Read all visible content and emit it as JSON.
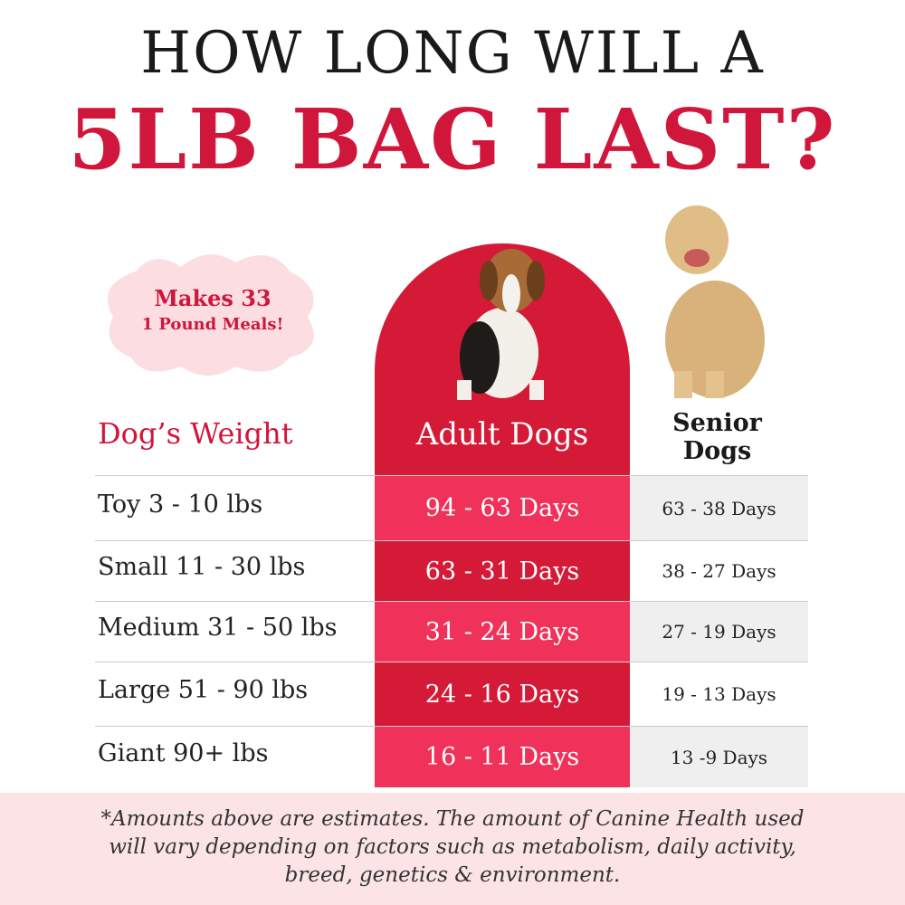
{
  "header": {
    "line1": "HOW LONG WILL A",
    "line2": "5LB BAG LAST?"
  },
  "badge": {
    "line1": "Makes 33",
    "line2": "1 Pound Meals!"
  },
  "table": {
    "headers": [
      "Dog’s Weight",
      "Adult Dogs",
      "Senior Dogs"
    ],
    "rows": [
      [
        "Toy 3 - 10 lbs",
        "94 - 63 Days",
        "63 - 38 Days"
      ],
      [
        "Small 11 - 30 lbs",
        "63 - 31 Days",
        "38 - 27 Days"
      ],
      [
        "Medium 31 - 50 lbs",
        "31 - 24 Days",
        "27 - 19 Days"
      ],
      [
        "Large 51 - 90 lbs",
        "24 - 16 Days",
        "19 - 13 Days"
      ],
      [
        "Giant 90+ lbs",
        "16 - 11 Days",
        "13 -9 Days"
      ]
    ]
  },
  "footnote": {
    "lines": [
      "*Amounts above are estimates. The amount of Canine Health used",
      "will vary depending on factors such as metabolism, daily activity,",
      "breed, genetics & environment."
    ]
  }
}
